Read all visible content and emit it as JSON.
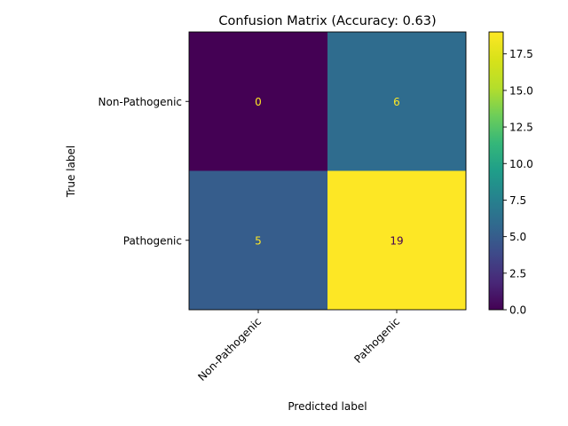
{
  "chart_data": {
    "type": "heatmap",
    "title": "Confusion Matrix (Accuracy: 0.63)",
    "xlabel": "Predicted label",
    "ylabel": "True label",
    "x_categories": [
      "Non-Pathogenic",
      "Pathogenic"
    ],
    "y_categories": [
      "Non-Pathogenic",
      "Pathogenic"
    ],
    "values": [
      [
        0,
        6
      ],
      [
        5,
        19
      ]
    ],
    "colormap": "viridis",
    "colorbar": {
      "range": [
        0,
        19
      ],
      "ticks": [
        0.0,
        2.5,
        5.0,
        7.5,
        10.0,
        12.5,
        15.0,
        17.5
      ],
      "tick_labels": [
        "0.0",
        "2.5",
        "5.0",
        "7.5",
        "10.0",
        "12.5",
        "15.0",
        "17.5"
      ]
    },
    "text_colors": {
      "on_dark": "#fde725",
      "on_light": "#440154"
    },
    "grid": false
  }
}
